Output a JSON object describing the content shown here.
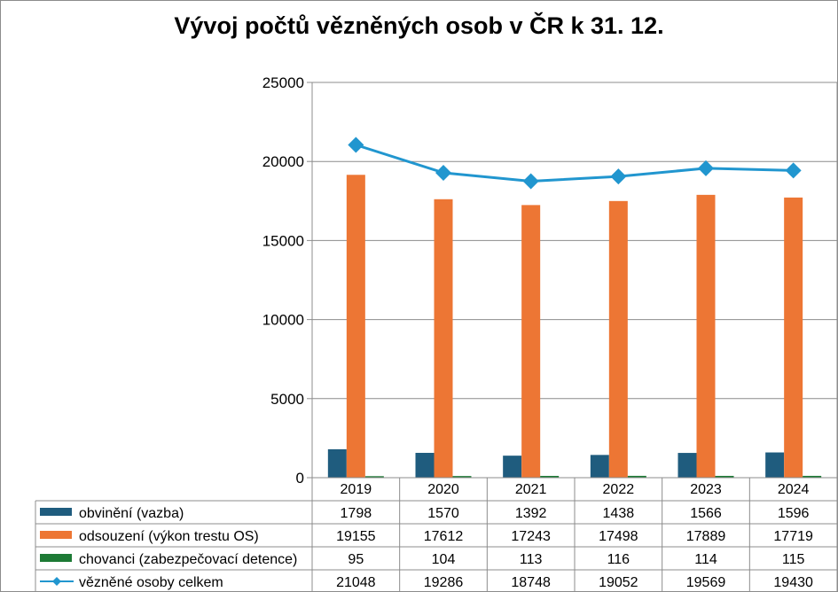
{
  "chart_data": {
    "type": "bar",
    "title": "Vývoj počtů vězněných osob v ČR k 31. 12.",
    "categories": [
      "2019",
      "2020",
      "2021",
      "2022",
      "2023",
      "2024"
    ],
    "ylim": [
      0,
      25000
    ],
    "yticks": [
      "0",
      "5000",
      "10000",
      "15000",
      "20000",
      "25000"
    ],
    "grid": true,
    "legend": "data-table-below",
    "series": [
      {
        "name": "obvinění (vazba)",
        "kind": "bar",
        "color": "#1f5c7e",
        "values": [
          1798,
          1570,
          1392,
          1438,
          1566,
          1596
        ]
      },
      {
        "name": "odsouzení (výkon trestu OS)",
        "kind": "bar",
        "color": "#ed7634",
        "values": [
          19155,
          17612,
          17243,
          17498,
          17889,
          17719
        ]
      },
      {
        "name": "chovanci (zabezpečovací detence)",
        "kind": "bar",
        "color": "#1d7a35",
        "values": [
          95,
          104,
          113,
          116,
          114,
          115
        ]
      },
      {
        "name": "vězněné osoby celkem",
        "kind": "line",
        "color": "#2196cf",
        "marker": "diamond",
        "values": [
          21048,
          19286,
          18748,
          19052,
          19569,
          19430
        ]
      }
    ]
  }
}
